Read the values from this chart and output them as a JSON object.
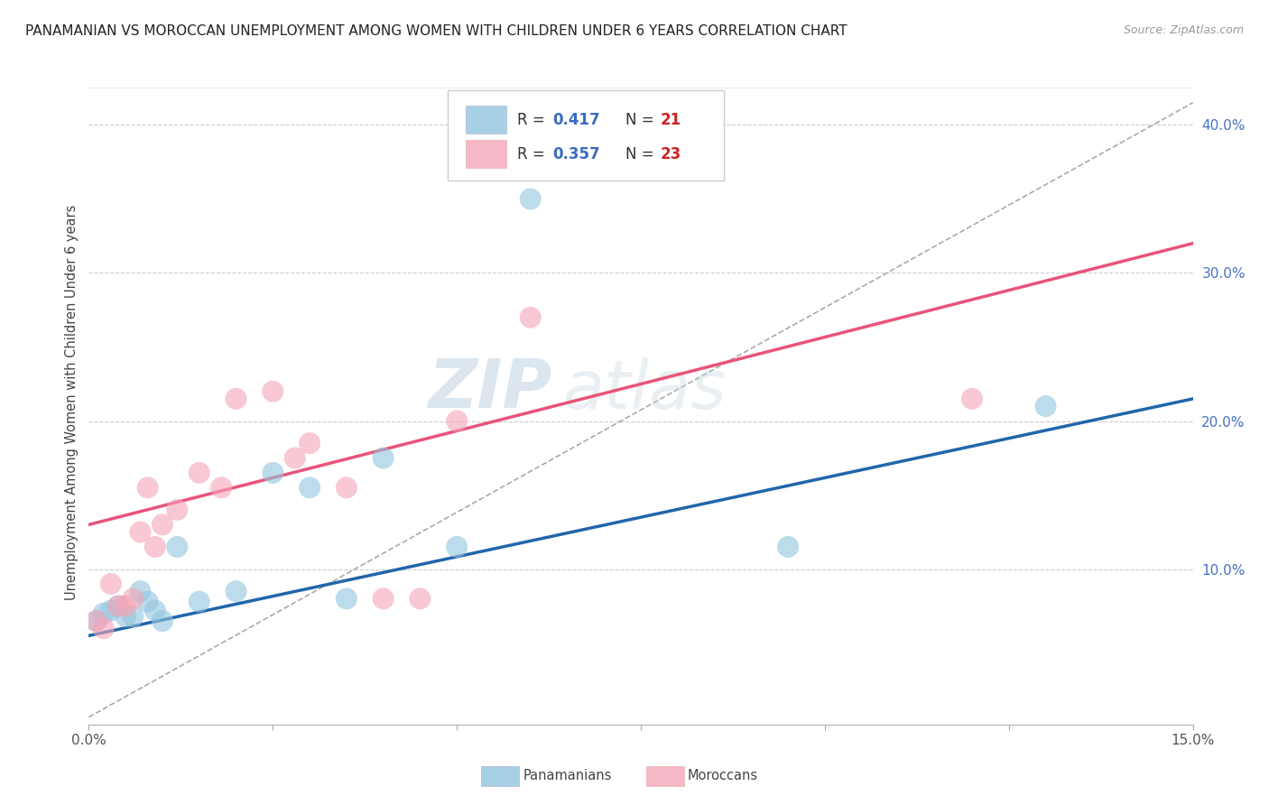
{
  "title": "PANAMANIAN VS MOROCCAN UNEMPLOYMENT AMONG WOMEN WITH CHILDREN UNDER 6 YEARS CORRELATION CHART",
  "source": "Source: ZipAtlas.com",
  "ylabel": "Unemployment Among Women with Children Under 6 years",
  "xlim": [
    0.0,
    0.15
  ],
  "ylim": [
    -0.005,
    0.43
  ],
  "xticks": [
    0.0,
    0.025,
    0.05,
    0.075,
    0.1,
    0.125,
    0.15
  ],
  "xticklabels": [
    "0.0%",
    "",
    "",
    "",
    "",
    "",
    "15.0%"
  ],
  "yticks_right": [
    0.1,
    0.2,
    0.3,
    0.4
  ],
  "ytick_right_labels": [
    "10.0%",
    "20.0%",
    "30.0%",
    "40.0%"
  ],
  "blue_color": "#92c5de",
  "pink_color": "#f4a5b8",
  "blue_line_color": "#2166ac",
  "pink_line_color": "#e8547a",
  "diagonal_color": "#aaaaaa",
  "watermark_zip": "ZIP",
  "watermark_atlas": "atlas",
  "panama_points_x": [
    0.001,
    0.002,
    0.003,
    0.004,
    0.005,
    0.006,
    0.007,
    0.008,
    0.009,
    0.01,
    0.012,
    0.015,
    0.02,
    0.025,
    0.03,
    0.035,
    0.04,
    0.05,
    0.06,
    0.095,
    0.13
  ],
  "panama_points_y": [
    0.065,
    0.07,
    0.072,
    0.075,
    0.068,
    0.068,
    0.085,
    0.078,
    0.072,
    0.065,
    0.115,
    0.078,
    0.085,
    0.165,
    0.155,
    0.08,
    0.175,
    0.115,
    0.35,
    0.115,
    0.21
  ],
  "morocco_points_x": [
    0.001,
    0.002,
    0.003,
    0.004,
    0.005,
    0.006,
    0.007,
    0.008,
    0.009,
    0.01,
    0.012,
    0.015,
    0.018,
    0.02,
    0.025,
    0.028,
    0.03,
    0.035,
    0.04,
    0.045,
    0.05,
    0.06,
    0.12
  ],
  "morocco_points_y": [
    0.065,
    0.06,
    0.09,
    0.075,
    0.075,
    0.08,
    0.125,
    0.155,
    0.115,
    0.13,
    0.14,
    0.165,
    0.155,
    0.215,
    0.22,
    0.175,
    0.185,
    0.155,
    0.08,
    0.08,
    0.2,
    0.27,
    0.215
  ],
  "blue_line_x": [
    0.0,
    0.15
  ],
  "blue_line_y": [
    0.055,
    0.215
  ],
  "pink_line_x": [
    0.0,
    0.15
  ],
  "pink_line_y": [
    0.13,
    0.32
  ],
  "diag_line_x": [
    0.0,
    0.15
  ],
  "diag_line_y": [
    0.0,
    0.415
  ]
}
